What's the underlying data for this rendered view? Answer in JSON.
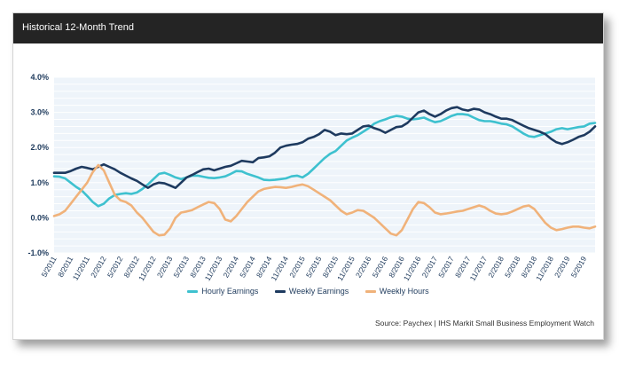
{
  "card": {
    "title": "Historical 12-Month Trend"
  },
  "source": "Source: Paychex | IHS Markit Small Business Employment Watch",
  "colors": {
    "hourly": "#3ec1cf",
    "weekly": "#1e3a5f",
    "hours": "#f0b27a",
    "plot_bg": "#eef4fa",
    "grid": "#ffffff",
    "tick_text": "#1e3a5c"
  },
  "chart_data": {
    "type": "line",
    "title": "Historical 12-Month Trend",
    "x": [
      "5/2011",
      "6/2011",
      "7/2011",
      "8/2011",
      "9/2011",
      "10/2011",
      "11/2011",
      "12/2011",
      "1/2012",
      "2/2012",
      "3/2012",
      "4/2012",
      "5/2012",
      "6/2012",
      "7/2012",
      "8/2012",
      "9/2012",
      "10/2012",
      "11/2012",
      "12/2012",
      "1/2013",
      "2/2013",
      "3/2013",
      "4/2013",
      "5/2013",
      "6/2013",
      "7/2013",
      "8/2013",
      "9/2013",
      "10/2013",
      "11/2013",
      "12/2013",
      "1/2014",
      "2/2014",
      "3/2014",
      "4/2014",
      "5/2014",
      "6/2014",
      "7/2014",
      "8/2014",
      "9/2014",
      "10/2014",
      "11/2014",
      "12/2014",
      "1/2015",
      "2/2015",
      "3/2015",
      "4/2015",
      "5/2015",
      "6/2015",
      "7/2015",
      "8/2015",
      "9/2015",
      "10/2015",
      "11/2015",
      "12/2015",
      "1/2016",
      "2/2016",
      "3/2016",
      "4/2016",
      "5/2016",
      "6/2016",
      "7/2016",
      "8/2016",
      "9/2016",
      "10/2016",
      "11/2016",
      "12/2016",
      "1/2017",
      "2/2017",
      "3/2017",
      "4/2017",
      "5/2017",
      "6/2017",
      "7/2017",
      "8/2017",
      "9/2017",
      "10/2017",
      "11/2017",
      "12/2017",
      "1/2018",
      "2/2018",
      "3/2018",
      "4/2018",
      "5/2018",
      "6/2018",
      "7/2018",
      "8/2018",
      "9/2018",
      "10/2018",
      "11/2018",
      "12/2018",
      "1/2019",
      "2/2019",
      "3/2019",
      "4/2019",
      "5/2019",
      "6/2019",
      "7/2019"
    ],
    "x_tick_labels": [
      "5/2011",
      "8/2011",
      "11/2011",
      "2/2012",
      "5/2012",
      "8/2012",
      "11/2012",
      "2/2013",
      "5/2013",
      "8/2013",
      "11/2013",
      "2/2014",
      "5/2014",
      "8/2014",
      "11/2014",
      "2/2015",
      "5/2015",
      "8/2015",
      "11/2015",
      "2/2016",
      "5/2016",
      "8/2016",
      "11/2016",
      "2/2017",
      "5/2017",
      "8/2017",
      "11/2017",
      "2/2018",
      "5/2018",
      "8/2018",
      "11/2018",
      "2/2019",
      "5/2019"
    ],
    "y_tick_labels": [
      "4.0%",
      "3.0%",
      "2.0%",
      "1.0%",
      "0.0%",
      "-1.0%"
    ],
    "ylim": [
      -1.0,
      4.0
    ],
    "y_ticks": [
      4.0,
      3.0,
      2.0,
      1.0,
      0.0,
      -1.0
    ],
    "grid": true,
    "legend_position": "bottom-center",
    "series": [
      {
        "name": "Hourly Earnings",
        "key": "hourly",
        "values": [
          1.18,
          1.17,
          1.12,
          1.0,
          0.88,
          0.78,
          0.62,
          0.45,
          0.33,
          0.4,
          0.55,
          0.65,
          0.68,
          0.7,
          0.68,
          0.72,
          0.82,
          0.95,
          1.1,
          1.25,
          1.28,
          1.22,
          1.15,
          1.1,
          1.15,
          1.2,
          1.2,
          1.17,
          1.14,
          1.13,
          1.15,
          1.18,
          1.25,
          1.33,
          1.32,
          1.25,
          1.2,
          1.15,
          1.08,
          1.07,
          1.08,
          1.1,
          1.12,
          1.18,
          1.2,
          1.15,
          1.25,
          1.4,
          1.55,
          1.7,
          1.82,
          1.9,
          2.05,
          2.2,
          2.28,
          2.35,
          2.45,
          2.55,
          2.68,
          2.75,
          2.8,
          2.86,
          2.9,
          2.88,
          2.82,
          2.8,
          2.82,
          2.85,
          2.78,
          2.72,
          2.75,
          2.82,
          2.9,
          2.95,
          2.95,
          2.93,
          2.85,
          2.78,
          2.75,
          2.75,
          2.72,
          2.68,
          2.66,
          2.6,
          2.5,
          2.4,
          2.32,
          2.3,
          2.35,
          2.4,
          2.45,
          2.52,
          2.55,
          2.52,
          2.55,
          2.58,
          2.6,
          2.68,
          2.7
        ]
      },
      {
        "name": "Weekly Earnings",
        "key": "weekly",
        "values": [
          1.28,
          1.28,
          1.28,
          1.33,
          1.4,
          1.45,
          1.42,
          1.38,
          1.45,
          1.52,
          1.45,
          1.38,
          1.28,
          1.2,
          1.12,
          1.05,
          0.95,
          0.85,
          0.95,
          1.0,
          0.98,
          0.92,
          0.85,
          1.0,
          1.15,
          1.22,
          1.3,
          1.38,
          1.4,
          1.35,
          1.4,
          1.45,
          1.48,
          1.55,
          1.62,
          1.6,
          1.58,
          1.7,
          1.72,
          1.75,
          1.85,
          2.0,
          2.05,
          2.08,
          2.1,
          2.15,
          2.25,
          2.3,
          2.38,
          2.5,
          2.45,
          2.35,
          2.4,
          2.38,
          2.4,
          2.5,
          2.6,
          2.62,
          2.55,
          2.5,
          2.42,
          2.5,
          2.58,
          2.6,
          2.7,
          2.85,
          3.0,
          3.05,
          2.95,
          2.88,
          2.95,
          3.05,
          3.12,
          3.15,
          3.08,
          3.05,
          3.1,
          3.08,
          3.0,
          2.95,
          2.88,
          2.82,
          2.82,
          2.78,
          2.7,
          2.62,
          2.55,
          2.5,
          2.45,
          2.38,
          2.25,
          2.15,
          2.1,
          2.15,
          2.22,
          2.3,
          2.35,
          2.45,
          2.6
        ]
      },
      {
        "name": "Weekly Hours",
        "key": "hours",
        "values": [
          0.05,
          0.1,
          0.2,
          0.4,
          0.6,
          0.8,
          1.0,
          1.3,
          1.5,
          1.35,
          1.0,
          0.65,
          0.5,
          0.45,
          0.35,
          0.15,
          0.0,
          -0.2,
          -0.4,
          -0.5,
          -0.48,
          -0.3,
          0.0,
          0.15,
          0.18,
          0.22,
          0.3,
          0.38,
          0.45,
          0.42,
          0.25,
          -0.05,
          -0.1,
          0.05,
          0.25,
          0.45,
          0.6,
          0.75,
          0.82,
          0.85,
          0.88,
          0.87,
          0.85,
          0.88,
          0.92,
          0.95,
          0.9,
          0.8,
          0.7,
          0.6,
          0.5,
          0.35,
          0.2,
          0.1,
          0.15,
          0.22,
          0.2,
          0.1,
          0.0,
          -0.15,
          -0.3,
          -0.45,
          -0.5,
          -0.35,
          -0.05,
          0.25,
          0.45,
          0.42,
          0.3,
          0.15,
          0.1,
          0.12,
          0.15,
          0.18,
          0.2,
          0.25,
          0.3,
          0.35,
          0.3,
          0.2,
          0.12,
          0.1,
          0.12,
          0.18,
          0.25,
          0.32,
          0.35,
          0.25,
          0.05,
          -0.15,
          -0.28,
          -0.35,
          -0.32,
          -0.28,
          -0.25,
          -0.25,
          -0.28,
          -0.3,
          -0.25
        ]
      }
    ]
  }
}
